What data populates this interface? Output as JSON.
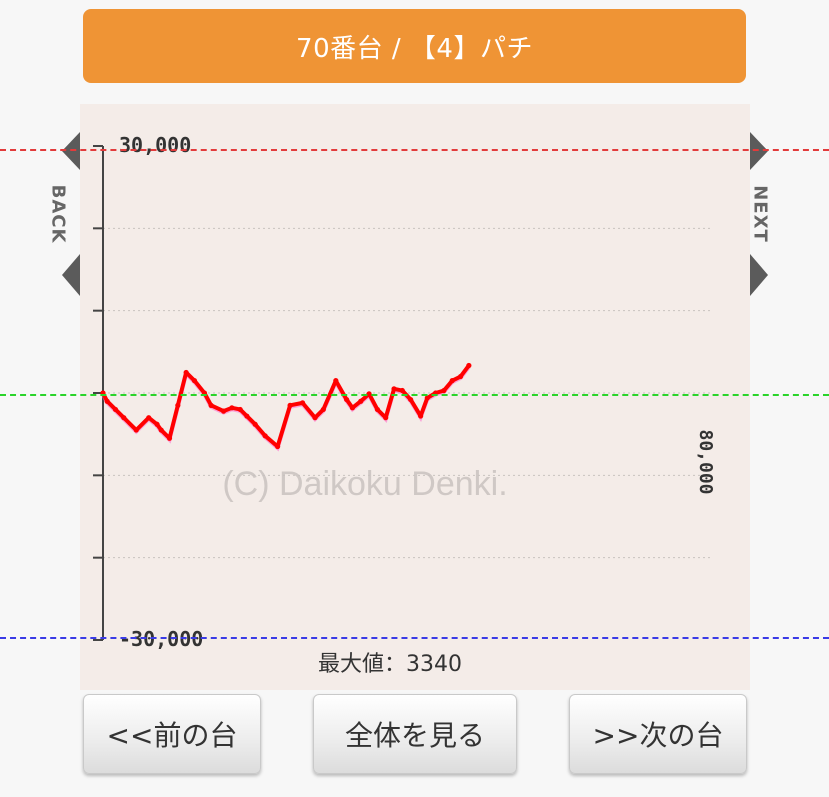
{
  "header": {
    "title": "70番台 / 【4】パチ"
  },
  "nav": {
    "back_label": "BACK",
    "next_label": "NEXT"
  },
  "chart_data": {
    "type": "line",
    "ylim": [
      -30000,
      30000
    ],
    "y_tick_labels": [
      "30,000",
      "-30,000"
    ],
    "right_label": "80,000",
    "watermark": "(C) Daikoku Denki.",
    "footer": "最大値：3340",
    "grid": true,
    "series": [
      {
        "color": "#ff0000",
        "x": [
          0,
          0.5,
          1.5,
          2.5,
          4.0,
          5.5,
          6.5,
          7.0,
          8.0,
          9.0,
          10.0,
          11.0,
          12.2,
          13.0,
          14.5,
          15.5,
          16.5,
          17.3,
          18.3,
          19.5,
          21.0,
          22.5,
          24.0,
          25.5,
          26.5,
          28.0,
          29.3,
          30.0,
          31.0,
          32.0,
          33.0,
          34.0,
          35.0,
          36.0,
          37.0,
          38.2,
          39.0,
          40.0,
          41.0,
          42.0,
          43.0,
          44.0
        ],
        "y": [
          0,
          -1000,
          -2000,
          -3000,
          -4500,
          -3000,
          -3800,
          -4500,
          -5500,
          -1500,
          2500,
          1500,
          0,
          -1500,
          -2200,
          -1800,
          -2000,
          -2800,
          -3800,
          -5200,
          -6500,
          -1500,
          -1200,
          -3000,
          -2000,
          1500,
          -800,
          -1800,
          -1000,
          -100,
          -2000,
          -3000,
          500,
          300,
          -800,
          -2800,
          -600,
          0,
          300,
          1500,
          2000,
          3340
        ]
      }
    ],
    "baseline": {
      "value": 0,
      "color": "#00cc00"
    }
  },
  "buttons": {
    "prev": "<<前の台",
    "all": "全体を見る",
    "next": ">>次の台"
  },
  "colors": {
    "header_bg": "#ef9435",
    "line": "#ff0000",
    "zero_line": "#00cc00"
  }
}
